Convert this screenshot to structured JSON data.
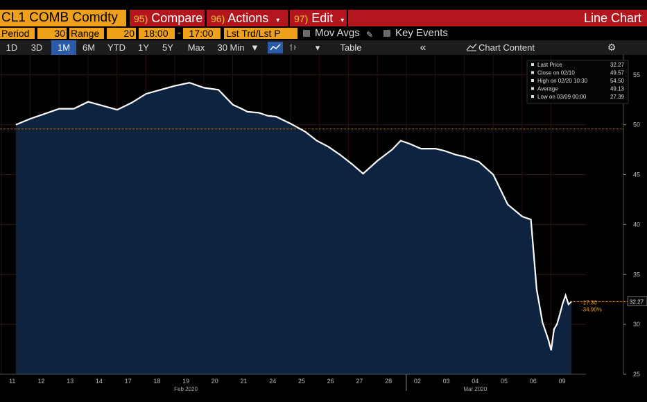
{
  "header": {
    "ticker": "CL1 COMB Comdty",
    "compare_num": "95)",
    "compare_label": "Compare",
    "actions_num": "96)",
    "actions_label": "Actions",
    "edit_num": "97)",
    "edit_label": "Edit",
    "chart_type": "Line Chart"
  },
  "period_bar": {
    "period_label": "Period",
    "period_value": "30",
    "range_label": "Range",
    "range_value": "20",
    "time_start": "18:00",
    "time_sep": "-",
    "time_end": "17:00",
    "price_field": "Lst Trd/Lst P",
    "mov_avgs": "Mov Avgs",
    "key_events": "Key Events"
  },
  "tab_bar": {
    "tabs": [
      "1D",
      "3D",
      "1M",
      "6M",
      "YTD",
      "1Y",
      "5Y",
      "Max"
    ],
    "active_tab": "1M",
    "interval": "30 Min",
    "table_label": "Table",
    "chart_content_label": "Chart Content"
  },
  "colors": {
    "accent_orange": "#f0a11c",
    "menu_red": "#b3161d",
    "area_fill": "#0e2340",
    "line": "#ffffff",
    "active_tab": "#2a5aa8"
  },
  "chart_data": {
    "type": "area",
    "title": "CL1 COMB Comdty",
    "ylim": [
      25,
      57
    ],
    "yticks": [
      25,
      30,
      35,
      40,
      45,
      50,
      55
    ],
    "reference_line": 49.57,
    "x_ticks": [
      "11",
      "12",
      "13",
      "14",
      "17",
      "18",
      "19",
      "20",
      "21",
      "24",
      "25",
      "26",
      "27",
      "28",
      "02",
      "03",
      "04",
      "05",
      "06",
      "09"
    ],
    "x_month_labels": [
      {
        "label": "Feb 2020",
        "after_tick": "19"
      },
      {
        "label": "Mar 2020",
        "after_tick": "04"
      }
    ],
    "series": [
      {
        "name": "Last Price",
        "x": [
          0,
          0.5,
          1,
          1.5,
          2,
          2.5,
          3,
          3.5,
          4,
          4.5,
          5,
          5.5,
          6,
          6.5,
          7,
          7.5,
          7.8,
          8,
          8.4,
          8.7,
          9,
          9.5,
          10,
          10.4,
          10.8,
          11.2,
          11.6,
          12,
          12.5,
          13,
          13.3,
          13.6,
          14,
          14.5,
          14.8,
          15.2,
          15.5,
          16,
          16.5,
          17,
          17.5,
          17.8,
          18,
          18.2,
          18.4,
          18.5,
          18.6,
          18.7,
          18.8,
          18.9,
          19.0,
          19.1,
          19.2
        ],
        "values": [
          50.0,
          50.6,
          51.1,
          51.6,
          51.6,
          52.3,
          51.9,
          51.5,
          52.2,
          53.1,
          53.5,
          53.9,
          54.2,
          53.7,
          53.5,
          52.0,
          51.6,
          51.3,
          51.2,
          50.9,
          50.8,
          50.1,
          49.3,
          48.4,
          47.8,
          47.0,
          46.1,
          45.1,
          46.4,
          47.5,
          48.4,
          48.1,
          47.6,
          47.6,
          47.4,
          47.0,
          46.8,
          46.3,
          45.0,
          42.0,
          40.8,
          40.5,
          33.5,
          30.2,
          28.5,
          27.4,
          29.5,
          30.0,
          31.0,
          32.1,
          32.9,
          32.0,
          32.27
        ]
      }
    ],
    "legend": [
      {
        "label": "Last Price",
        "value": "32.27"
      },
      {
        "label": "Close on 02/10",
        "value": "49.57"
      },
      {
        "label": "High on 02/20 10:30",
        "value": "54.50"
      },
      {
        "label": "Average",
        "value": "49.13"
      },
      {
        "label": "Low on 03/09 00:00",
        "value": "27.39"
      }
    ],
    "last_value_label": "32.27",
    "change_abs": "-17.30",
    "change_pct": "-34.90%"
  }
}
